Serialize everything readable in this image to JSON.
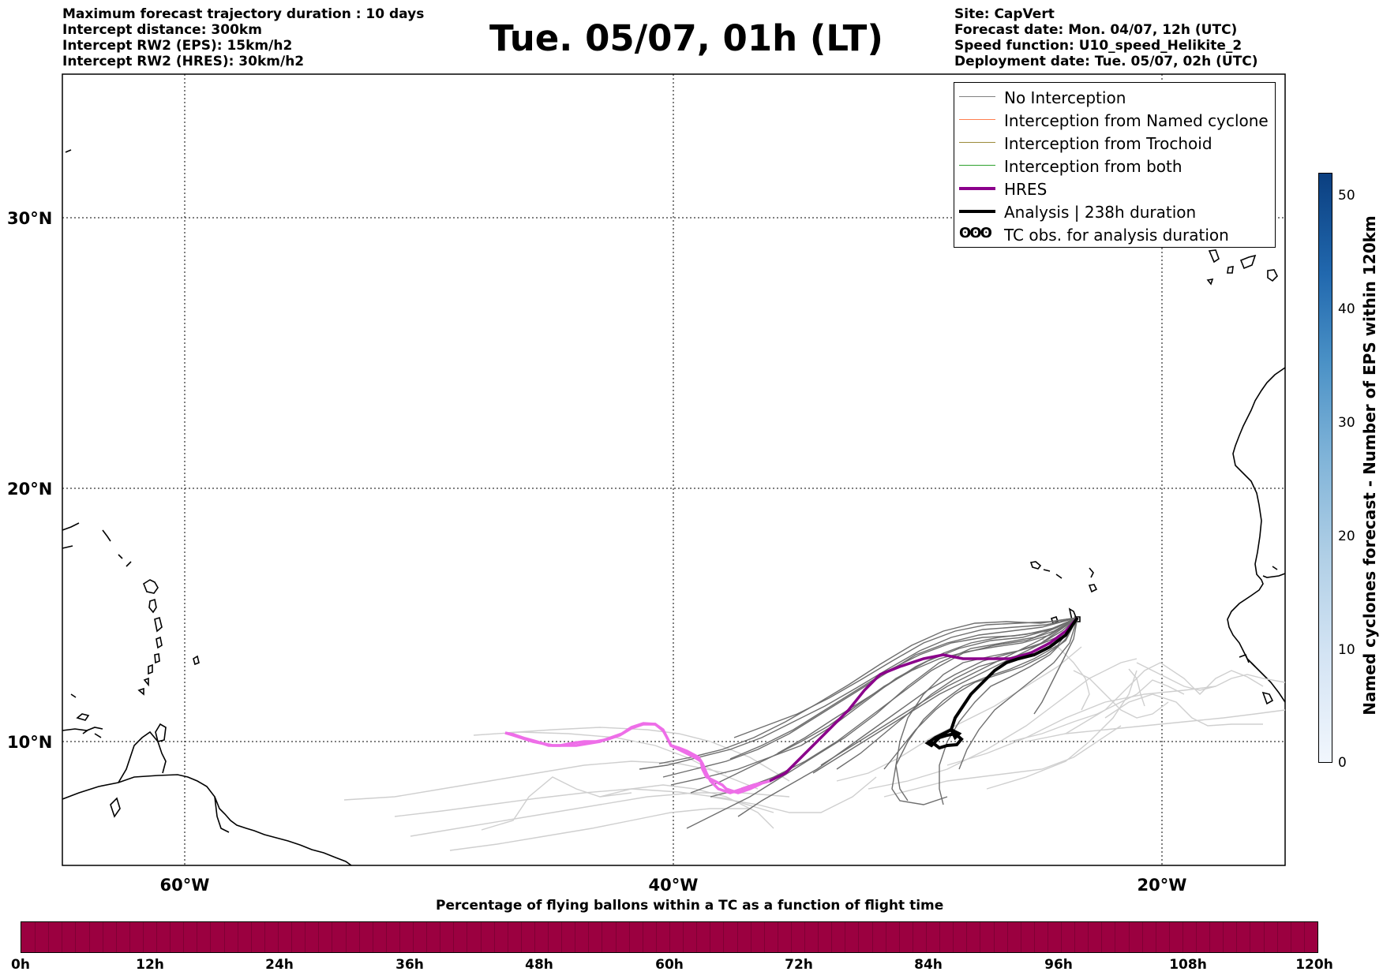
{
  "header": {
    "left_lines": [
      "Maximum forecast trajectory duration : 10 days",
      "Intercept distance: 300km",
      "Intercept RW2 (EPS):  15km/h2",
      "Intercept RW2 (HRES): 30km/h2"
    ],
    "title": "Tue. 05/07, 01h (LT)",
    "right_lines": [
      "Site: CapVert",
      "Forecast date: Mon. 04/07, 12h (UTC)",
      "Speed function: U10_speed_Helikite_2",
      "Deployment date: Tue. 05/07, 02h (UTC)"
    ]
  },
  "map": {
    "lat_labels": [
      "30°N",
      "20°N",
      "10°N"
    ],
    "lon_labels": [
      "60°W",
      "40°W",
      "20°W"
    ]
  },
  "legend": {
    "items": [
      {
        "label": "No Interception",
        "color": "#808080"
      },
      {
        "label": "Interception from Named cyclone",
        "color": "#ff7f50"
      },
      {
        "label": "Interception from Trochoid",
        "color": "#9b8a3a"
      },
      {
        "label": "Interception from both",
        "color": "#2ca02c"
      },
      {
        "label": "HRES",
        "color": "#8b008b"
      },
      {
        "label": "Analysis | 238h duration",
        "color": "#000000"
      },
      {
        "label": "TC obs. for analysis duration",
        "symbol": "ʘʘʘ"
      }
    ]
  },
  "colors": {
    "eps_track": "#6e6e6e",
    "eps_track_light": "#cfcfcf",
    "hres": "#8b008b",
    "hres_early": "#ee6ee8",
    "analysis": "#000000",
    "bottom_colorbar": "#9b0040"
  },
  "bottom_colorbar": {
    "title": "Percentage of flying ballons within a TC as a function of flight time",
    "ticks": [
      "0h",
      "12h",
      "24h",
      "36h",
      "48h",
      "60h",
      "72h",
      "84h",
      "96h",
      "108h",
      "120h"
    ]
  },
  "right_colorbar": {
    "label": "Named cyclones forecast - Number of EPS within 120km",
    "ticks": [
      "0",
      "10",
      "20",
      "30",
      "40",
      "50"
    ],
    "range": [
      0,
      52
    ]
  }
}
